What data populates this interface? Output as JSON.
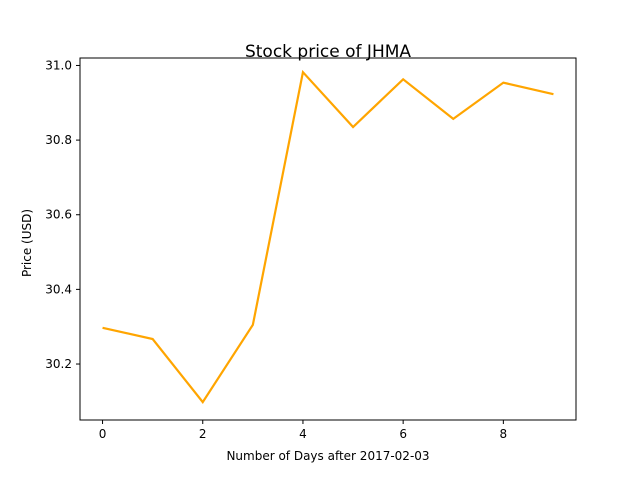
{
  "chart_data": {
    "type": "line",
    "title": "Stock price of JHMA",
    "xlabel": "Number of Days after 2017-02-03",
    "ylabel": "Price (USD)",
    "xlim": [
      -0.45,
      9.45
    ],
    "ylim": [
      30.05,
      31.02
    ],
    "xticks": [
      0,
      2,
      4,
      6,
      8
    ],
    "xtick_labels": [
      "0",
      "2",
      "4",
      "6",
      "8"
    ],
    "yticks": [
      30.2,
      30.4,
      30.6,
      30.8,
      31.0
    ],
    "ytick_labels": [
      "30.2",
      "30.4",
      "30.6",
      "30.8",
      "31.0"
    ],
    "grid": false,
    "series": [
      {
        "color": "#ffa500",
        "x": [
          0,
          1,
          2,
          3,
          4,
          5,
          6,
          7,
          8,
          9
        ],
        "y": [
          30.297,
          30.267,
          30.098,
          30.305,
          30.982,
          30.835,
          30.963,
          30.857,
          30.954,
          30.923
        ]
      }
    ]
  }
}
